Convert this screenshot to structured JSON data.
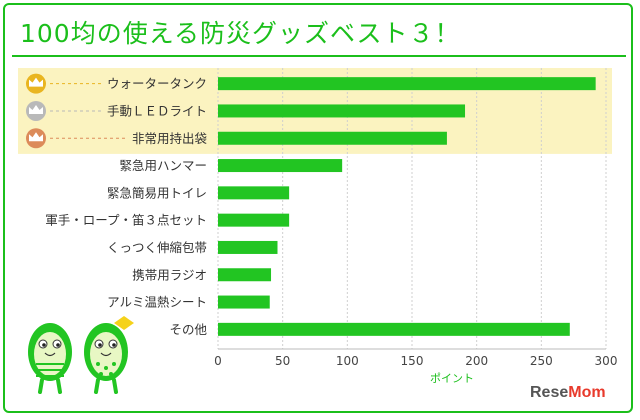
{
  "title": "100均の使える防災グッズベスト３！",
  "brand": {
    "text1": "Rese",
    "text2": "Mom"
  },
  "colors": {
    "accent": "#1bbf1b",
    "bar": "#22c522",
    "highlight": "#fbf3c0",
    "gold": "#e9b520",
    "silver": "#b9b9b9",
    "bronze": "#dc8b5a"
  },
  "chart_data": {
    "type": "bar",
    "orientation": "horizontal",
    "categories": [
      "ウォータータンク",
      "手動ＬＥＤライト",
      "非常用持出袋",
      "緊急用ハンマー",
      "緊急簡易用トイレ",
      "軍手・ロープ・笛３点セット",
      "くっつく伸縮包帯",
      "携帯用ラジオ",
      "アルミ温熱シート",
      "その他"
    ],
    "values": [
      292,
      191,
      177,
      96,
      55,
      55,
      46,
      41,
      40,
      272
    ],
    "xlabel": "ポイント",
    "xlim": [
      0,
      300
    ],
    "xticks": [
      0,
      50,
      100,
      150,
      200,
      250,
      300
    ],
    "grid": true,
    "top3_highlight": true
  }
}
